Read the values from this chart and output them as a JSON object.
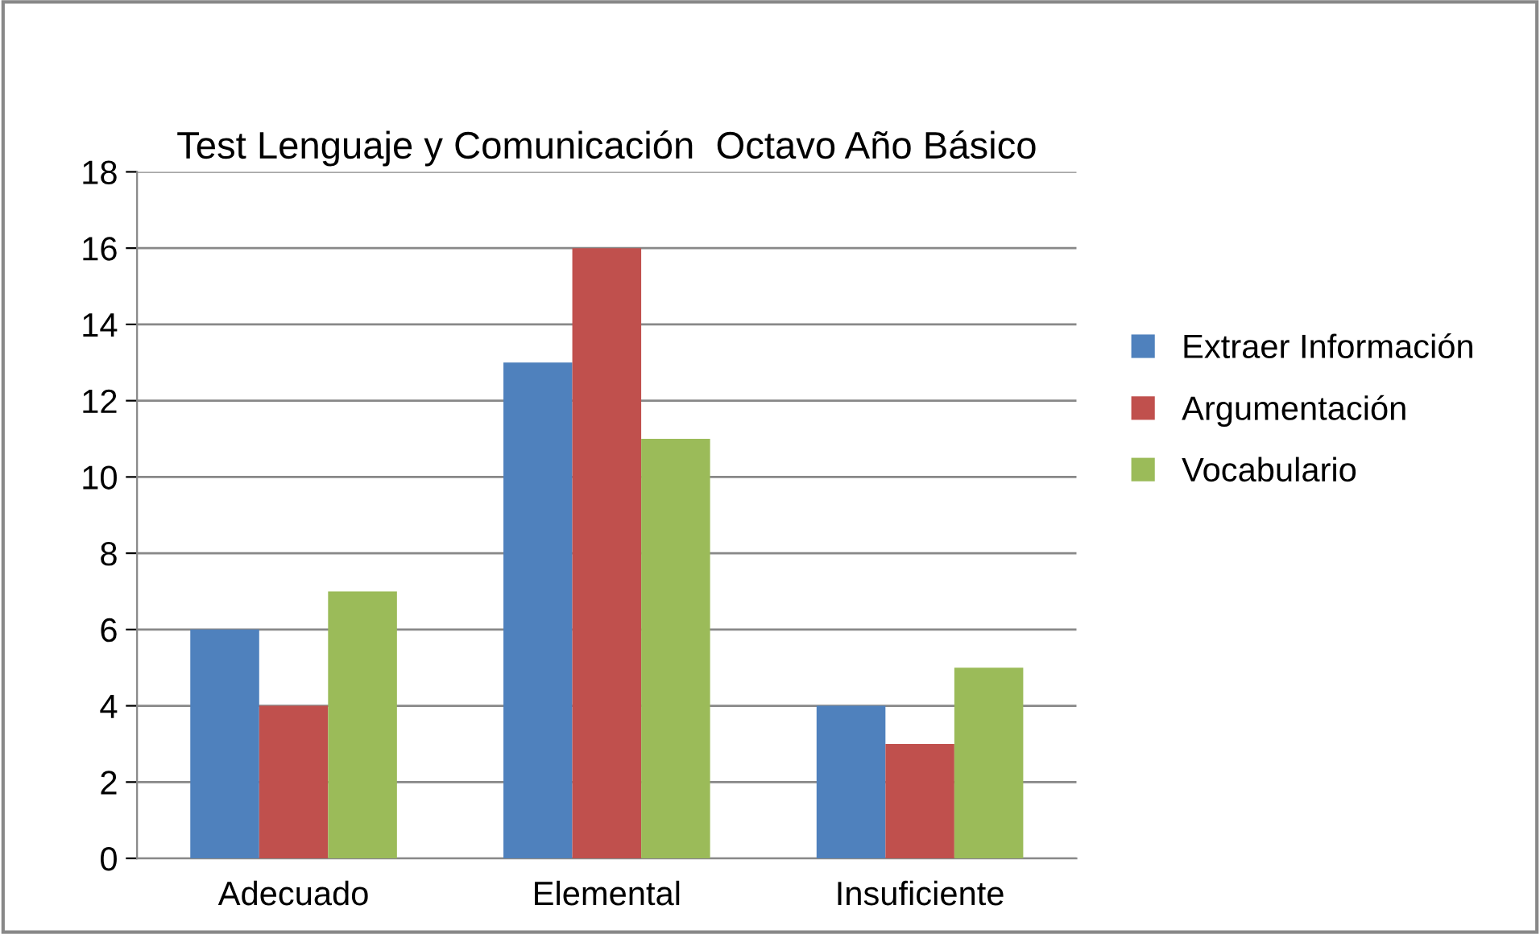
{
  "chart_data": {
    "type": "bar",
    "title": "Test Lenguaje y Comunicación  Octavo Año Básico",
    "categories": [
      "Adecuado",
      "Elemental",
      "Insuficiente"
    ],
    "series": [
      {
        "name": "Extraer Información",
        "color": "#4f81bd",
        "values": [
          6,
          13,
          4
        ]
      },
      {
        "name": "Argumentación",
        "color": "#c0504d",
        "values": [
          4,
          16,
          3
        ]
      },
      {
        "name": "Vocabulario",
        "color": "#9bbb59",
        "values": [
          7,
          11,
          5
        ]
      }
    ],
    "ylim": [
      0,
      18
    ],
    "yticks": [
      0,
      2,
      4,
      6,
      8,
      10,
      12,
      14,
      16,
      18
    ],
    "grid": "y",
    "legend": "right"
  }
}
